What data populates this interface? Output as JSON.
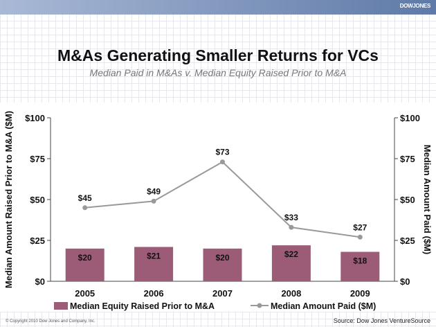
{
  "header": {
    "logo": "DOWJONES"
  },
  "chart_data": {
    "type": "bar+line",
    "title": "M&As Generating Smaller Returns for VCs",
    "subtitle": "Median Paid in M&As v. Median Equity Raised Prior to M&A",
    "categories": [
      "2005",
      "2006",
      "2007",
      "2008",
      "2009"
    ],
    "series": [
      {
        "name": "Median Equity Raised Prior to M&A",
        "type": "bar",
        "axis": "left",
        "values": [
          20,
          21,
          20,
          22,
          18
        ],
        "labels": [
          "$20",
          "$21",
          "$20",
          "$22",
          "$18"
        ],
        "color": "#9c5c77"
      },
      {
        "name": "Median Amount Paid ($M)",
        "type": "line",
        "axis": "right",
        "values": [
          45,
          49,
          73,
          33,
          27
        ],
        "labels": [
          "$45",
          "$49",
          "$73",
          "$33",
          "$27"
        ],
        "color": "#999999"
      }
    ],
    "ylabel_left": "Median Amount Raised Prior to M&A ($M)",
    "ylabel_right": "Median Amount Paid ($M)",
    "ylim": [
      0,
      100
    ],
    "yticks": [
      0,
      25,
      50,
      75,
      100
    ],
    "ytick_labels": [
      "$0",
      "$25",
      "$50",
      "$75",
      "$100"
    ],
    "legend": "bottom"
  },
  "footer": {
    "copyright": "© Copyright 2010 Dow Jones and Company, Inc.",
    "source": "Source: Dow Jones VentureSource"
  }
}
